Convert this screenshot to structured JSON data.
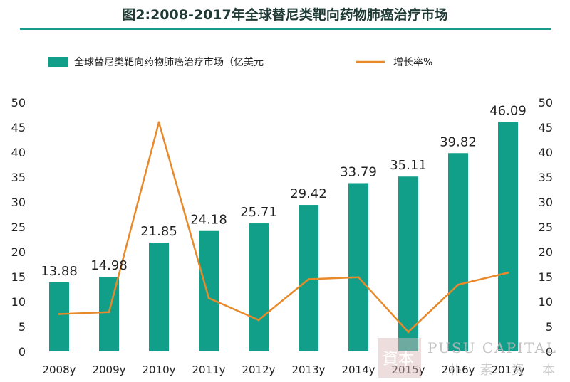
{
  "title": "图2:2008-2017年全球替尼类靶向药物肺癌治疗市场",
  "colors": {
    "bar": "#129f8a",
    "line": "#e8892a",
    "rule": "#1a9a8a"
  },
  "watermark": {
    "text": "PUSU CAPITAL",
    "sub": "朴 素 资 本",
    "logo": "資本"
  },
  "chart_data": {
    "type": "bar",
    "categories": [
      "2008y",
      "2009y",
      "2010y",
      "2011y",
      "2012y",
      "2013y",
      "2014y",
      "2015y",
      "2016y",
      "2017y"
    ],
    "series": [
      {
        "name": "全球替尼类靶向药物肺癌治疗市场（亿美元",
        "type": "bar",
        "axis": "left",
        "values": [
          13.88,
          14.98,
          21.85,
          24.18,
          25.71,
          29.42,
          33.79,
          35.11,
          39.82,
          46.09
        ]
      },
      {
        "name": "增长率%",
        "type": "line",
        "axis": "right",
        "values": [
          7.5,
          7.9,
          46.0,
          10.7,
          6.3,
          14.5,
          14.9,
          3.9,
          13.4,
          15.8
        ]
      }
    ],
    "data_labels": [
      "13.88",
      "14.98",
      "21.85",
      "24.18",
      "25.71",
      "29.42",
      "33.79",
      "35.11",
      "39.82",
      "46.09"
    ],
    "ylim": [
      0,
      50
    ],
    "y2lim": [
      0,
      50
    ],
    "yticks": [
      "0",
      "5",
      "10",
      "15",
      "20",
      "25",
      "30",
      "35",
      "40",
      "45",
      "50"
    ],
    "y2ticks": [
      "0",
      "5",
      "10",
      "15",
      "20",
      "25",
      "30",
      "35",
      "40",
      "45",
      "50"
    ],
    "legend": "top-left",
    "grid": false
  }
}
